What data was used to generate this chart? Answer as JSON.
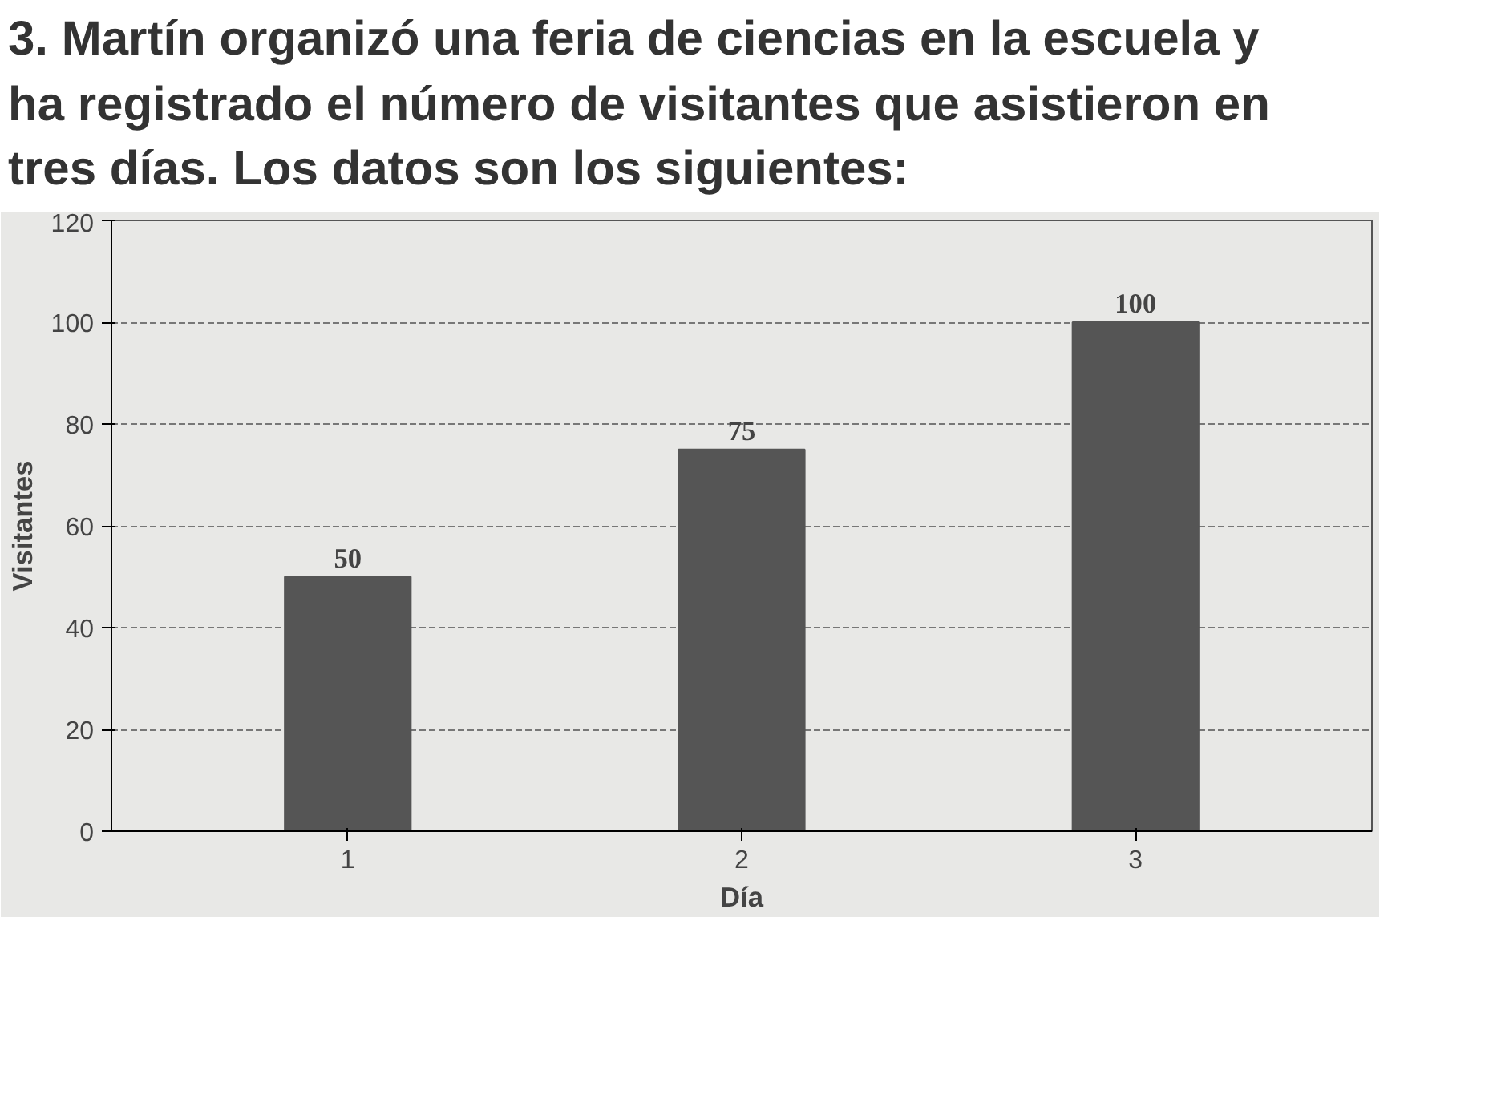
{
  "chart_data": {
    "type": "bar",
    "title": "3. Martín organizó una feria de ciencias en la escuela y ha registrado el número de visitantes que asistieron en tres días. Los datos son los siguientes:",
    "categories": [
      "1",
      "2",
      "3"
    ],
    "values": [
      50,
      75,
      100
    ],
    "color": "#555555",
    "xlabel": "Día",
    "ylabel": "Visitantes",
    "ylim": [
      0,
      120
    ],
    "yticks": [
      0,
      20,
      40,
      60,
      80,
      100,
      120
    ],
    "grid": "y",
    "data_labels": true
  }
}
